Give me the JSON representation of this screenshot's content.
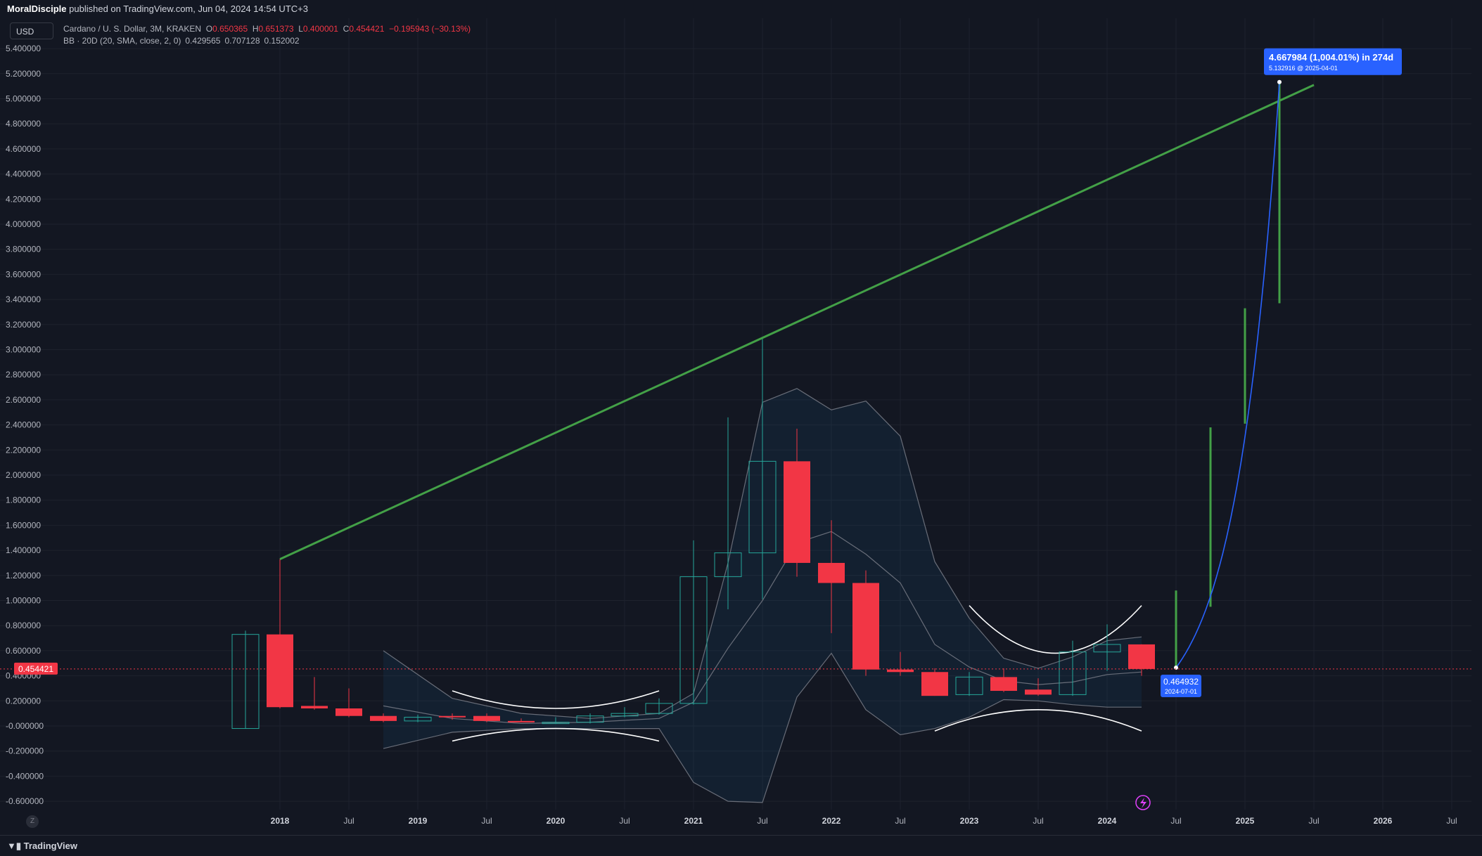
{
  "header": {
    "publisher": "MoralDisciple",
    "published_text": "published on TradingView.com, Jun 04, 2024 14:54 UTC+3"
  },
  "currency_button": "USD",
  "legend": {
    "symbol": "Cardano / U. S. Dollar, 3M, KRAKEN",
    "open_label": "O",
    "open": "0.650365",
    "high_label": "H",
    "high": "0.651373",
    "low_label": "L",
    "low": "0.400001",
    "close_label": "C",
    "close": "0.454421",
    "change": "−0.195943 (−30.13%)",
    "indicator": "BB · 20D (20, SMA, close, 2, 0)",
    "indicator_values": [
      "0.429565",
      "0.707128",
      "0.152002"
    ]
  },
  "footer": {
    "brand": "TradingView",
    "zoom_btn": "Z"
  },
  "colors": {
    "up": "#26a69a",
    "down": "#f23645",
    "trend": "#43a047",
    "projection": "#2962ff",
    "background": "#131722",
    "band_line": "#787b86"
  },
  "chart_data": {
    "type": "candlestick",
    "symbol": "ADAUSD",
    "interval": "3M",
    "y_ticks": [
      "5.400000",
      "5.200000",
      "5.000000",
      "4.800000",
      "4.600000",
      "4.400000",
      "4.200000",
      "4.000000",
      "3.800000",
      "3.600000",
      "3.400000",
      "3.200000",
      "3.000000",
      "2.800000",
      "2.600000",
      "2.400000",
      "2.200000",
      "2.000000",
      "1.800000",
      "1.600000",
      "1.400000",
      "1.200000",
      "1.000000",
      "0.800000",
      "0.600000",
      "0.400000",
      "0.200000",
      "-0.000000",
      "-0.200000",
      "-0.400000",
      "-0.600000"
    ],
    "x_ticks": [
      {
        "t": 2018.0,
        "label": "2018",
        "bold": true
      },
      {
        "t": 2018.5,
        "label": "Jul",
        "bold": false
      },
      {
        "t": 2019.0,
        "label": "2019",
        "bold": true
      },
      {
        "t": 2019.5,
        "label": "Jul",
        "bold": false
      },
      {
        "t": 2020.0,
        "label": "2020",
        "bold": true
      },
      {
        "t": 2020.5,
        "label": "Jul",
        "bold": false
      },
      {
        "t": 2021.0,
        "label": "2021",
        "bold": true
      },
      {
        "t": 2021.5,
        "label": "Jul",
        "bold": false
      },
      {
        "t": 2022.0,
        "label": "2022",
        "bold": true
      },
      {
        "t": 2022.5,
        "label": "Jul",
        "bold": false
      },
      {
        "t": 2023.0,
        "label": "2023",
        "bold": true
      },
      {
        "t": 2023.5,
        "label": "Jul",
        "bold": false
      },
      {
        "t": 2024.0,
        "label": "2024",
        "bold": true
      },
      {
        "t": 2024.5,
        "label": "Jul",
        "bold": false
      },
      {
        "t": 2025.0,
        "label": "2025",
        "bold": true
      },
      {
        "t": 2025.5,
        "label": "Jul",
        "bold": false
      },
      {
        "t": 2026.0,
        "label": "2026",
        "bold": true
      },
      {
        "t": 2026.5,
        "label": "Jul",
        "bold": false
      }
    ],
    "candles": [
      {
        "t": 2017.75,
        "o": -0.02,
        "h": 0.76,
        "l": -0.02,
        "c": 0.73
      },
      {
        "t": 2018.0,
        "o": 0.73,
        "h": 1.33,
        "l": 0.14,
        "c": 0.15
      },
      {
        "t": 2018.25,
        "o": 0.16,
        "h": 0.39,
        "l": 0.13,
        "c": 0.14
      },
      {
        "t": 2018.5,
        "o": 0.14,
        "h": 0.3,
        "l": 0.07,
        "c": 0.08
      },
      {
        "t": 2018.75,
        "o": 0.08,
        "h": 0.1,
        "l": 0.03,
        "c": 0.04
      },
      {
        "t": 2019.0,
        "o": 0.04,
        "h": 0.09,
        "l": 0.03,
        "c": 0.07
      },
      {
        "t": 2019.25,
        "o": 0.08,
        "h": 0.1,
        "l": 0.05,
        "c": 0.07
      },
      {
        "t": 2019.5,
        "o": 0.08,
        "h": 0.1,
        "l": 0.03,
        "c": 0.04
      },
      {
        "t": 2019.75,
        "o": 0.04,
        "h": 0.06,
        "l": 0.03,
        "c": 0.03
      },
      {
        "t": 2020.0,
        "o": 0.03,
        "h": 0.07,
        "l": 0.02,
        "c": 0.03
      },
      {
        "t": 2020.25,
        "o": 0.03,
        "h": 0.1,
        "l": 0.02,
        "c": 0.08
      },
      {
        "t": 2020.5,
        "o": 0.08,
        "h": 0.15,
        "l": 0.07,
        "c": 0.1
      },
      {
        "t": 2020.75,
        "o": 0.1,
        "h": 0.22,
        "l": 0.09,
        "c": 0.18
      },
      {
        "t": 2021.0,
        "o": 0.18,
        "h": 1.48,
        "l": 0.17,
        "c": 1.19
      },
      {
        "t": 2021.25,
        "o": 1.19,
        "h": 2.46,
        "l": 0.93,
        "c": 1.38
      },
      {
        "t": 2021.5,
        "o": 1.38,
        "h": 3.1,
        "l": 1.01,
        "c": 2.11
      },
      {
        "t": 2021.75,
        "o": 2.11,
        "h": 2.37,
        "l": 1.19,
        "c": 1.3
      },
      {
        "t": 2022.0,
        "o": 1.3,
        "h": 1.64,
        "l": 0.74,
        "c": 1.14
      },
      {
        "t": 2022.25,
        "o": 1.14,
        "h": 1.24,
        "l": 0.4,
        "c": 0.45
      },
      {
        "t": 2022.5,
        "o": 0.45,
        "h": 0.59,
        "l": 0.4,
        "c": 0.43
      },
      {
        "t": 2022.75,
        "o": 0.43,
        "h": 0.46,
        "l": 0.24,
        "c": 0.24
      },
      {
        "t": 2023.0,
        "o": 0.25,
        "h": 0.43,
        "l": 0.24,
        "c": 0.39
      },
      {
        "t": 2023.25,
        "o": 0.39,
        "h": 0.46,
        "l": 0.27,
        "c": 0.28
      },
      {
        "t": 2023.5,
        "o": 0.29,
        "h": 0.38,
        "l": 0.24,
        "c": 0.25
      },
      {
        "t": 2023.75,
        "o": 0.25,
        "h": 0.68,
        "l": 0.24,
        "c": 0.59
      },
      {
        "t": 2024.0,
        "o": 0.59,
        "h": 0.81,
        "l": 0.44,
        "c": 0.65
      },
      {
        "t": 2024.25,
        "o": 0.650365,
        "h": 0.651373,
        "l": 0.400001,
        "c": 0.454421
      }
    ],
    "bollinger": {
      "upper": [
        [
          2018.75,
          0.6
        ],
        [
          2019.25,
          0.22
        ],
        [
          2019.75,
          0.1
        ],
        [
          2020.25,
          0.06
        ],
        [
          2020.75,
          0.1
        ],
        [
          2021.0,
          0.26
        ],
        [
          2021.25,
          1.3
        ],
        [
          2021.5,
          2.58
        ],
        [
          2021.75,
          2.69
        ],
        [
          2022.0,
          2.52
        ],
        [
          2022.25,
          2.59
        ],
        [
          2022.5,
          2.31
        ],
        [
          2022.75,
          1.31
        ],
        [
          2023.0,
          0.86
        ],
        [
          2023.25,
          0.54
        ],
        [
          2023.5,
          0.46
        ],
        [
          2023.75,
          0.55
        ],
        [
          2024.0,
          0.68
        ],
        [
          2024.25,
          0.71
        ]
      ],
      "basis": [
        [
          2018.75,
          0.16
        ],
        [
          2019.25,
          0.06
        ],
        [
          2019.75,
          0.02
        ],
        [
          2020.25,
          0.03
        ],
        [
          2020.75,
          0.06
        ],
        [
          2021.0,
          0.19
        ],
        [
          2021.25,
          0.62
        ],
        [
          2021.5,
          1.0
        ],
        [
          2021.75,
          1.46
        ],
        [
          2022.0,
          1.55
        ],
        [
          2022.25,
          1.37
        ],
        [
          2022.5,
          1.14
        ],
        [
          2022.75,
          0.65
        ],
        [
          2023.0,
          0.47
        ],
        [
          2023.25,
          0.36
        ],
        [
          2023.5,
          0.33
        ],
        [
          2023.75,
          0.35
        ],
        [
          2024.0,
          0.41
        ],
        [
          2024.25,
          0.43
        ]
      ],
      "lower": [
        [
          2018.75,
          -0.18
        ],
        [
          2019.25,
          -0.05
        ],
        [
          2019.75,
          -0.02
        ],
        [
          2020.25,
          -0.02
        ],
        [
          2020.75,
          -0.02
        ],
        [
          2021.0,
          -0.45
        ],
        [
          2021.25,
          -0.6
        ],
        [
          2021.5,
          -0.61
        ],
        [
          2021.75,
          0.23
        ],
        [
          2022.0,
          0.58
        ],
        [
          2022.25,
          0.13
        ],
        [
          2022.5,
          -0.07
        ],
        [
          2022.75,
          -0.02
        ],
        [
          2023.0,
          0.07
        ],
        [
          2023.25,
          0.21
        ],
        [
          2023.5,
          0.2
        ],
        [
          2023.75,
          0.17
        ],
        [
          2024.0,
          0.15
        ],
        [
          2024.25,
          0.15
        ]
      ]
    },
    "arcs": [
      {
        "x1": 2019.25,
        "x2": 2020.75,
        "y_end": 0.28,
        "y_mid": 0.14
      },
      {
        "x1": 2019.25,
        "x2": 2020.75,
        "y_end": -0.12,
        "y_mid": -0.02
      },
      {
        "x1": 2023.0,
        "x2": 2024.25,
        "y_end": 0.96,
        "y_mid": 0.58
      },
      {
        "x1": 2022.75,
        "x2": 2024.25,
        "y_end": -0.04,
        "y_mid": 0.13
      }
    ],
    "trendline": [
      [
        2018.0,
        1.33
      ],
      [
        2025.5,
        5.11
      ]
    ],
    "projection_bars": [
      {
        "t": 2024.5,
        "lo": 0.46,
        "hi": 1.08
      },
      {
        "t": 2024.75,
        "lo": 0.95,
        "hi": 2.38
      },
      {
        "t": 2025.0,
        "lo": 2.41,
        "hi": 3.33
      },
      {
        "t": 2025.25,
        "lo": 3.37,
        "hi": 5.13
      }
    ],
    "projection_path": {
      "start": [
        2024.5,
        0.464932
      ],
      "end": [
        2025.25,
        5.132916
      ]
    },
    "current_price": {
      "value": 0.454421,
      "label": "0.454421"
    },
    "start_label": {
      "price": "0.464932",
      "date": "2024-07-01"
    },
    "measure_label": {
      "main": "4.667984 (1,004.01%) in 274d",
      "sub": "5.132916 @ 2025-04-01"
    }
  }
}
